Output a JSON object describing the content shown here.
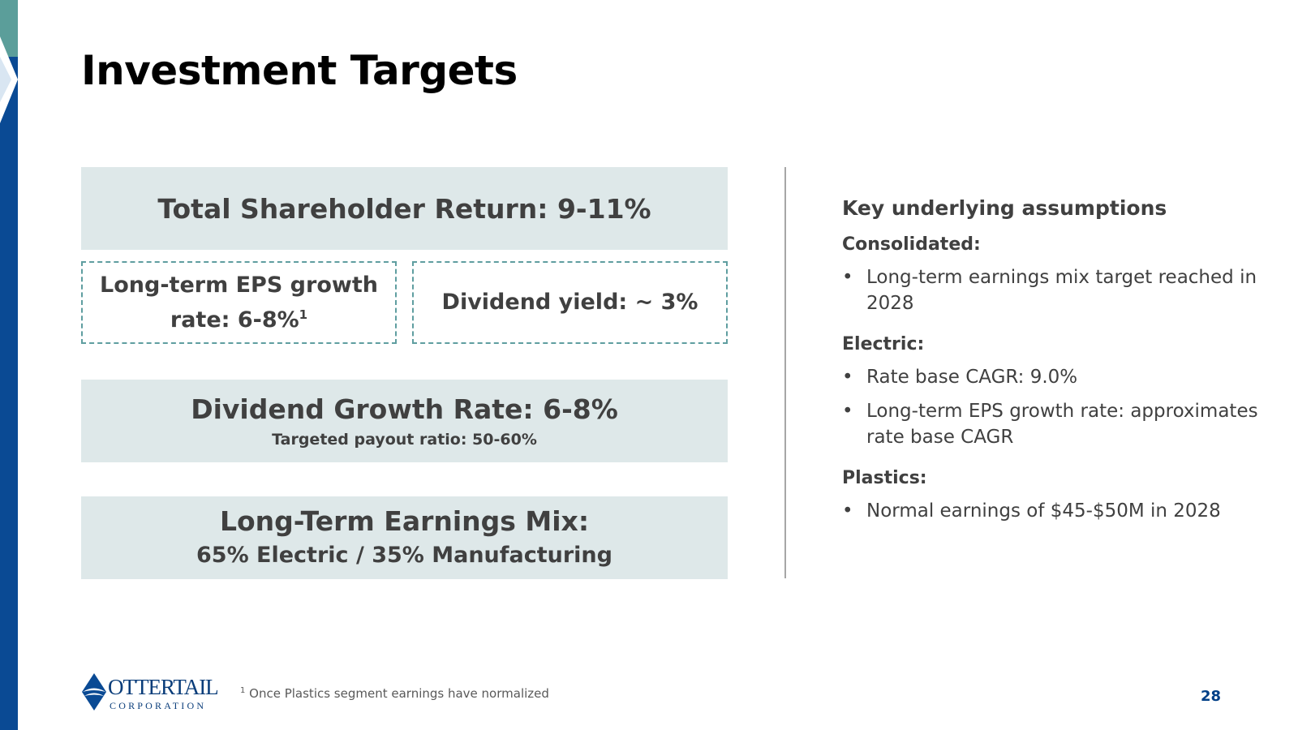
{
  "slide": {
    "title": "Investment Targets",
    "page_number": "28"
  },
  "targets": {
    "tsr": "Total Shareholder Return: 9-11%",
    "eps_line1": "Long-term EPS growth",
    "eps_line2": "rate: 6-8%",
    "eps_sup": "1",
    "dividend_yield": "Dividend yield: ~ 3%",
    "dividend_growth": "Dividend Growth Rate: 6-8%",
    "payout_ratio": "Targeted payout ratio: 50-60%",
    "earnings_mix_title": "Long-Term Earnings Mix:",
    "earnings_mix_value": "65% Electric / 35% Manufacturing"
  },
  "assumptions": {
    "title": "Key underlying assumptions",
    "sections": [
      {
        "label": "Consolidated:",
        "bullets": [
          "Long-term earnings mix target reached in 2028"
        ]
      },
      {
        "label": "Electric:",
        "bullets": [
          "Rate base CAGR: 9.0%",
          "Long-term EPS growth rate: approximates rate base CAGR"
        ]
      },
      {
        "label": "Plastics:",
        "bullets": [
          "Normal earnings of $45-$50M in 2028"
        ]
      }
    ],
    "bullet_symbol": "•"
  },
  "footnote": {
    "marker": "1",
    "text": "Once Plastics segment earnings have normalized"
  },
  "logo": {
    "name": "OTTERTAIL",
    "subtitle": "CORPORATION"
  },
  "colors": {
    "navy": "#003f87",
    "teal": "#5f9ea0",
    "box_fill": "#dee8e9",
    "text": "#404040"
  }
}
